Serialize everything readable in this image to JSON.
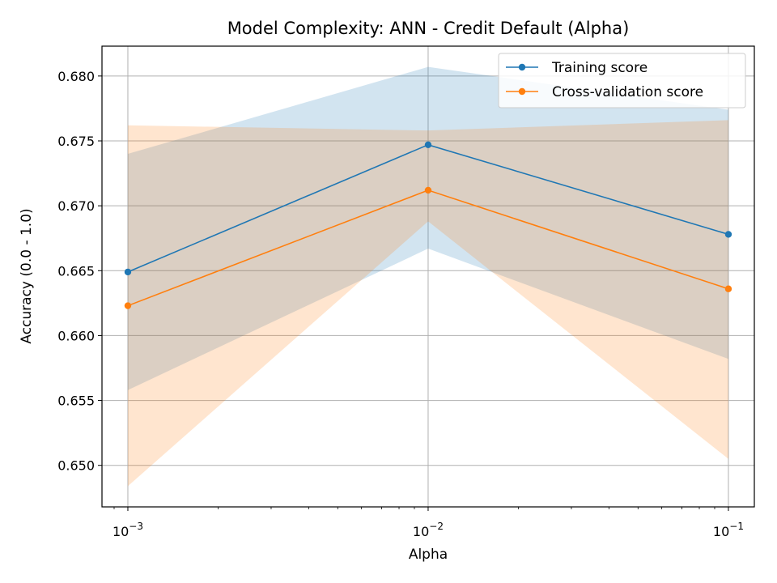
{
  "chart_data": {
    "type": "line",
    "title": "Model Complexity: ANN - Credit Default (Alpha)",
    "xlabel": "Alpha",
    "ylabel": "Accuracy (0.0 - 1.0)",
    "xscale": "log",
    "x": [
      0.001,
      0.01,
      0.1
    ],
    "x_tick_labels": [
      {
        "value": 0.001,
        "base": "10",
        "exp": "−3"
      },
      {
        "value": 0.01,
        "base": "10",
        "exp": "−2"
      },
      {
        "value": 0.1,
        "base": "10",
        "exp": "−1"
      }
    ],
    "y_ticks": [
      0.65,
      0.655,
      0.66,
      0.665,
      0.67,
      0.675,
      0.68
    ],
    "y_tick_labels": [
      "0.650",
      "0.655",
      "0.660",
      "0.665",
      "0.670",
      "0.675",
      "0.680"
    ],
    "ylim": [
      0.6468,
      0.6823
    ],
    "xlim": [
      0.00082,
      0.122
    ],
    "grid": true,
    "legend_position": "upper right",
    "series": [
      {
        "name": "Training score",
        "color": "#1f77b4",
        "band_color": "#1f77b4",
        "values": [
          0.6649,
          0.6747,
          0.6678
        ],
        "band_low": [
          0.6558,
          0.6667,
          0.6582
        ],
        "band_high": [
          0.674,
          0.6807,
          0.6774
        ]
      },
      {
        "name": "Cross-validation score",
        "color": "#ff7f0e",
        "band_color": "#ff7f0e",
        "values": [
          0.6623,
          0.6712,
          0.6636
        ],
        "band_low": [
          0.6484,
          0.6688,
          0.6505
        ],
        "band_high": [
          0.6762,
          0.6758,
          0.6766
        ]
      }
    ]
  }
}
